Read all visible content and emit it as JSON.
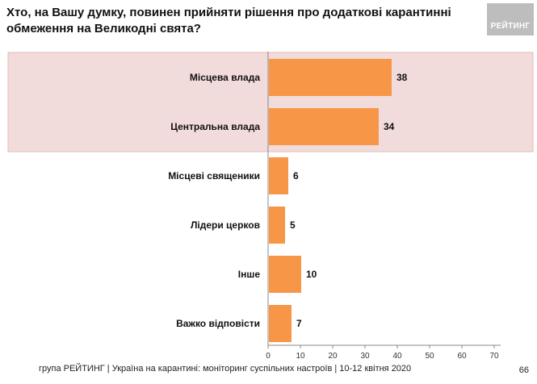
{
  "header": {
    "title": "Хто, на Вашу думку, повинен прийняти рішення про додаткові карантинні обмеження  на Великодні свята?",
    "logo_text": "РЕЙТИНГ"
  },
  "footer": {
    "text": "група РЕЙТИНГ | Україна на карантині: моніторинг суспільних настроїв  | 10-12 квітня  2020",
    "page_number": "66"
  },
  "colors": {
    "bar": "#F79646",
    "highlight": "#F2DCDB",
    "highlight_border": "#E6B9B8",
    "axis": "#888888"
  },
  "chart_data": {
    "type": "bar",
    "orientation": "horizontal",
    "categories": [
      "Місцева влада",
      "Центральна влада",
      "Місцеві священики",
      "Лідери церков",
      "Інше",
      "Важко відповісти"
    ],
    "values": [
      38,
      34,
      6,
      5,
      10,
      7
    ],
    "highlighted_categories": [
      "Місцева влада",
      "Центральна влада"
    ],
    "xlim": [
      0,
      70
    ],
    "xticks": [
      0,
      10,
      20,
      30,
      40,
      50,
      60,
      70
    ],
    "grid": false,
    "title": "",
    "xlabel": "",
    "ylabel": ""
  }
}
